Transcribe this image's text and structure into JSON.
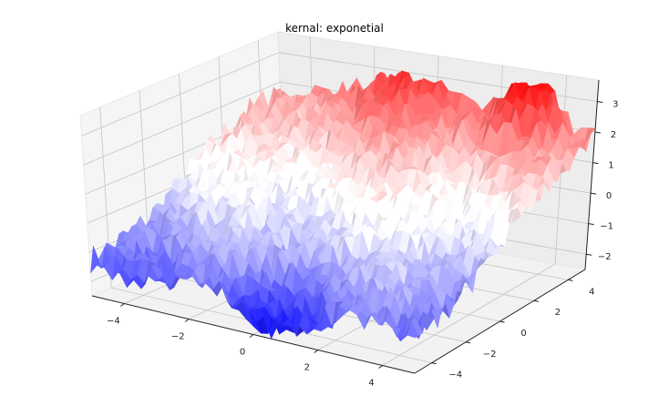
{
  "chart_data": {
    "type": "surface3d",
    "title": "kernal: exponetial",
    "colormap": "bwr",
    "x_axis": {
      "label": "",
      "ticks": [
        -4,
        -2,
        0,
        2,
        4
      ],
      "range": [
        -5,
        5
      ]
    },
    "y_axis": {
      "label": "",
      "ticks": [
        -4,
        -2,
        0,
        2,
        4
      ],
      "range": [
        -5,
        5
      ]
    },
    "z_axis": {
      "label": "",
      "ticks": [
        -2,
        -1,
        0,
        1,
        2,
        3
      ],
      "range": [
        -2.5,
        3.7
      ]
    },
    "grid": true,
    "surface_description": "Noisy random-field surface sampled on a ~50x50 grid over x,y in [-5,5]; z ranges roughly -2.5 (deep blue, front-left near x≈0,y≈-5) to ~3.5 (red peaks at back, near x≈2..4, y≈5). Overall trend rises from front (blue) to back (red).",
    "z_min": -2.5,
    "z_max": 3.5,
    "colors": {
      "low": "#0000ff",
      "mid": "#ffffff",
      "high": "#ff0000",
      "pane": "#f2f2f2",
      "grid": "#b0b0b0"
    }
  },
  "labels": {
    "title": "kernal: exponetial",
    "x_ticks": [
      "−4",
      "−2",
      "0",
      "2",
      "4"
    ],
    "y_ticks": [
      "−4",
      "−2",
      "0",
      "2",
      "4"
    ],
    "z_ticks": [
      "3",
      "2",
      "1",
      "0",
      "−1",
      "−2"
    ]
  }
}
